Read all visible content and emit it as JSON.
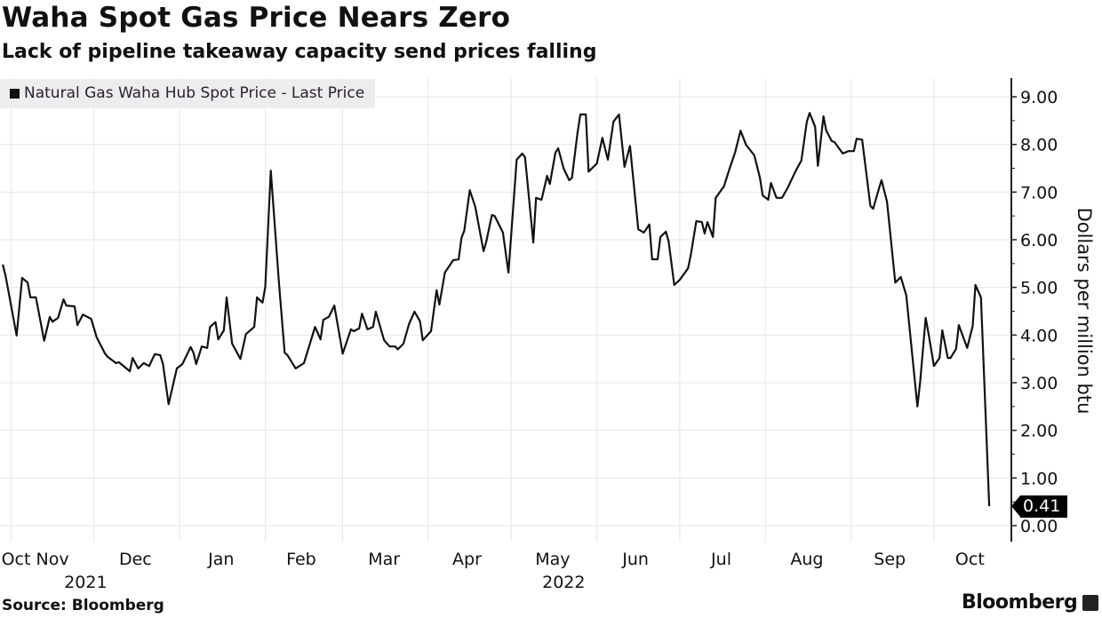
{
  "title": "Waha Spot Gas Price Nears Zero",
  "subtitle": "Lack of pipeline takeaway capacity send prices falling",
  "source": "Source: Bloomberg",
  "logo": "Bloomberg",
  "chart_data": {
    "type": "line",
    "title": "Waha Spot Gas Price Nears Zero",
    "ylabel": "Dollars per million btu",
    "xlabel": "",
    "ylim": [
      0,
      9
    ],
    "xlim": [
      "2021-10-28",
      "2022-10-29"
    ],
    "yticks": [
      "0.00",
      "1.00",
      "2.00",
      "3.00",
      "4.00",
      "5.00",
      "6.00",
      "7.00",
      "8.00",
      "9.00"
    ],
    "month_labels": [
      {
        "label": "Oct",
        "date": "2021-10-30"
      },
      {
        "label": "Nov",
        "date": "2021-11-16"
      },
      {
        "label": "Dec",
        "date": "2021-12-16"
      },
      {
        "label": "Jan",
        "date": "2022-01-16"
      },
      {
        "label": "Feb",
        "date": "2022-02-14"
      },
      {
        "label": "Mar",
        "date": "2022-03-16"
      },
      {
        "label": "Apr",
        "date": "2022-04-15"
      },
      {
        "label": "May",
        "date": "2022-05-16"
      },
      {
        "label": "Jun",
        "date": "2022-06-15"
      },
      {
        "label": "Jul",
        "date": "2022-07-16"
      },
      {
        "label": "Aug",
        "date": "2022-08-16"
      },
      {
        "label": "Sep",
        "date": "2022-09-15"
      },
      {
        "label": "Oct",
        "date": "2022-10-14"
      }
    ],
    "year_labels": [
      {
        "label": "2021",
        "date": "2021-11-28"
      },
      {
        "label": "2022",
        "date": "2022-05-20"
      }
    ],
    "month_gridlines": [
      "2021-11-01",
      "2021-12-01",
      "2022-01-01",
      "2022-02-01",
      "2022-03-01",
      "2022-04-01",
      "2022-05-01",
      "2022-06-01",
      "2022-07-01",
      "2022-08-01",
      "2022-09-01",
      "2022-10-01"
    ],
    "grid": true,
    "legend_position": "top-left",
    "line_color": "#111111",
    "last_price_label": "0.41",
    "series": [
      {
        "name": "Natural Gas Waha Hub Spot Price - Last Price",
        "x": [
          "2021-10-29",
          "2021-10-30",
          "2021-10-31",
          "2021-11-03",
          "2021-11-05",
          "2021-11-07",
          "2021-11-08",
          "2021-11-10",
          "2021-11-13",
          "2021-11-15",
          "2021-11-16",
          "2021-11-18",
          "2021-11-20",
          "2021-11-21",
          "2021-11-24",
          "2021-11-25",
          "2021-11-27",
          "2021-11-30",
          "2021-12-02",
          "2021-12-05",
          "2021-12-06",
          "2021-12-09",
          "2021-12-10",
          "2021-12-14",
          "2021-12-15",
          "2021-12-17",
          "2021-12-19",
          "2021-12-21",
          "2021-12-23",
          "2021-12-25",
          "2021-12-26",
          "2021-12-28",
          "2021-12-31",
          "2022-01-02",
          "2022-01-05",
          "2022-01-06",
          "2022-01-07",
          "2022-01-09",
          "2022-01-11",
          "2022-01-12",
          "2022-01-14",
          "2022-01-15",
          "2022-01-17",
          "2022-01-18",
          "2022-01-20",
          "2022-01-23",
          "2022-01-25",
          "2022-01-28",
          "2022-01-29",
          "2022-01-31",
          "2022-02-01",
          "2022-02-03",
          "2022-02-06",
          "2022-02-08",
          "2022-02-09",
          "2022-02-12",
          "2022-02-15",
          "2022-02-19",
          "2022-02-21",
          "2022-02-22",
          "2022-02-24",
          "2022-02-26",
          "2022-03-01",
          "2022-03-04",
          "2022-03-05",
          "2022-03-07",
          "2022-03-08",
          "2022-03-10",
          "2022-03-12",
          "2022-03-13",
          "2022-03-16",
          "2022-03-18",
          "2022-03-20",
          "2022-03-21",
          "2022-03-23",
          "2022-03-25",
          "2022-03-27",
          "2022-03-29",
          "2022-03-30",
          "2022-04-02",
          "2022-04-04",
          "2022-04-05",
          "2022-04-07",
          "2022-04-10",
          "2022-04-12",
          "2022-04-13",
          "2022-04-14",
          "2022-04-16",
          "2022-04-18",
          "2022-04-21",
          "2022-04-22",
          "2022-04-24",
          "2022-04-25",
          "2022-04-28",
          "2022-04-30",
          "2022-05-03",
          "2022-05-05",
          "2022-05-06",
          "2022-05-09",
          "2022-05-10",
          "2022-05-12",
          "2022-05-14",
          "2022-05-15",
          "2022-05-17",
          "2022-05-18",
          "2022-05-20",
          "2022-05-22",
          "2022-05-23",
          "2022-05-25",
          "2022-05-26",
          "2022-05-28",
          "2022-05-29",
          "2022-06-01",
          "2022-06-03",
          "2022-06-05",
          "2022-06-07",
          "2022-06-09",
          "2022-06-11",
          "2022-06-13",
          "2022-06-16",
          "2022-06-18",
          "2022-06-20",
          "2022-06-21",
          "2022-06-23",
          "2022-06-24",
          "2022-06-26",
          "2022-06-27",
          "2022-06-29",
          "2022-07-01",
          "2022-07-04",
          "2022-07-05",
          "2022-07-07",
          "2022-07-09",
          "2022-07-10",
          "2022-07-11",
          "2022-07-13",
          "2022-07-14",
          "2022-07-17",
          "2022-07-19",
          "2022-07-21",
          "2022-07-23",
          "2022-07-25",
          "2022-07-28",
          "2022-07-30",
          "2022-07-31",
          "2022-08-02",
          "2022-08-03",
          "2022-08-05",
          "2022-08-07",
          "2022-08-09",
          "2022-08-12",
          "2022-08-14",
          "2022-08-16",
          "2022-08-17",
          "2022-08-19",
          "2022-08-20",
          "2022-08-22",
          "2022-08-23",
          "2022-08-25",
          "2022-08-26",
          "2022-08-29",
          "2022-08-31",
          "2022-09-02",
          "2022-09-03",
          "2022-09-05",
          "2022-09-08",
          "2022-09-09",
          "2022-09-11",
          "2022-09-12",
          "2022-09-14",
          "2022-09-17",
          "2022-09-19",
          "2022-09-21",
          "2022-09-25",
          "2022-09-26",
          "2022-09-28",
          "2022-09-29",
          "2022-10-01",
          "2022-10-03",
          "2022-10-04",
          "2022-10-06",
          "2022-10-07",
          "2022-10-09",
          "2022-10-10",
          "2022-10-13",
          "2022-10-15",
          "2022-10-16",
          "2022-10-18",
          "2022-10-21"
        ],
        "y": [
          5.48,
          5.25,
          4.94,
          3.99,
          5.2,
          5.1,
          4.79,
          4.79,
          3.88,
          4.38,
          4.28,
          4.36,
          4.75,
          4.62,
          4.6,
          4.21,
          4.43,
          4.34,
          3.95,
          3.61,
          3.54,
          3.41,
          3.43,
          3.24,
          3.52,
          3.3,
          3.41,
          3.35,
          3.6,
          3.58,
          3.39,
          2.55,
          3.3,
          3.39,
          3.75,
          3.63,
          3.39,
          3.76,
          3.73,
          4.17,
          4.27,
          3.91,
          4.1,
          4.79,
          3.82,
          3.5,
          4.02,
          4.17,
          4.79,
          4.68,
          5.01,
          7.45,
          5.07,
          3.63,
          3.58,
          3.3,
          3.41,
          4.17,
          3.91,
          4.32,
          4.38,
          4.62,
          3.61,
          4.12,
          4.08,
          4.14,
          4.45,
          4.12,
          4.17,
          4.49,
          3.89,
          3.76,
          3.76,
          3.7,
          3.82,
          4.23,
          4.49,
          4.29,
          3.89,
          4.08,
          4.94,
          4.64,
          5.31,
          5.57,
          5.59,
          6.04,
          6.19,
          7.04,
          6.69,
          5.76,
          5.96,
          6.52,
          6.5,
          6.15,
          5.31,
          7.68,
          7.81,
          7.73,
          5.94,
          6.88,
          6.84,
          7.34,
          7.17,
          7.83,
          7.92,
          7.49,
          7.25,
          7.3,
          8.24,
          8.63,
          8.63,
          7.43,
          7.6,
          8.14,
          7.68,
          8.48,
          8.63,
          7.53,
          7.97,
          6.22,
          6.15,
          6.32,
          5.59,
          5.59,
          6.06,
          6.17,
          5.96,
          5.05,
          5.16,
          5.4,
          5.68,
          6.39,
          6.37,
          6.13,
          6.37,
          6.06,
          6.88,
          7.12,
          7.49,
          7.83,
          8.29,
          7.99,
          7.77,
          7.3,
          6.93,
          6.84,
          7.19,
          6.88,
          6.88,
          7.08,
          7.45,
          7.66,
          8.48,
          8.66,
          8.37,
          7.55,
          8.59,
          8.29,
          8.07,
          8.05,
          7.81,
          7.86,
          7.86,
          8.12,
          8.1,
          6.71,
          6.65,
          7.06,
          7.25,
          6.8,
          5.1,
          5.22,
          4.83,
          2.5,
          3.02,
          4.36,
          4.04,
          3.35,
          3.52,
          4.1,
          3.52,
          3.52,
          3.71,
          4.21,
          3.73,
          4.19,
          5.05,
          4.79,
          0.41
        ]
      }
    ]
  }
}
